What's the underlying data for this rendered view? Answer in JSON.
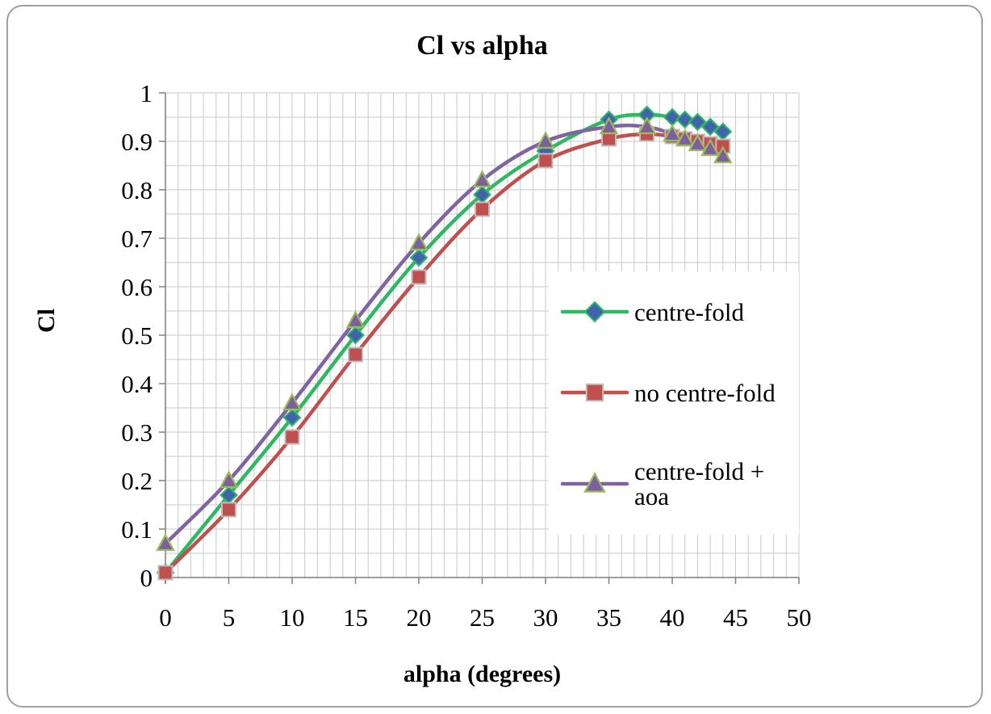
{
  "chart_data": {
    "type": "line",
    "title": "Cl vs alpha",
    "xlabel": "alpha (degrees)",
    "ylabel": "Cl",
    "xlim": [
      0,
      50
    ],
    "ylim": [
      0,
      1
    ],
    "x_major_step": 5,
    "y_major_step": 0.1,
    "x_minor_step": 1,
    "y_minor_step": 0.05,
    "grid": true,
    "legend_position": "overlay-middle-right",
    "x_ticks": [
      "0",
      "5",
      "10",
      "15",
      "20",
      "25",
      "30",
      "35",
      "40",
      "45",
      "50"
    ],
    "y_ticks": [
      "0",
      "0.1",
      "0.2",
      "0.3",
      "0.4",
      "0.5",
      "0.6",
      "0.7",
      "0.8",
      "0.9",
      "1"
    ],
    "colors": {
      "grid": "#c9c9c9",
      "axis": "#7f7f7f",
      "text": "#000000"
    },
    "series": [
      {
        "name": "centre-fold",
        "marker": "diamond",
        "line_color": "#2eb864",
        "marker_fill": "#4063ac",
        "marker_stroke": "#2eb864",
        "x": [
          0,
          5,
          10,
          15,
          20,
          25,
          30,
          35,
          38,
          40,
          41,
          42,
          43,
          44
        ],
        "y": [
          0.01,
          0.17,
          0.33,
          0.5,
          0.66,
          0.79,
          0.88,
          0.945,
          0.955,
          0.95,
          0.945,
          0.94,
          0.93,
          0.92
        ]
      },
      {
        "name": "no centre-fold",
        "marker": "square",
        "line_color": "#c0504d",
        "marker_fill": "#c0504d",
        "marker_stroke": "#bdbdbd",
        "x": [
          0,
          5,
          10,
          15,
          20,
          25,
          30,
          35,
          38,
          40,
          41,
          42,
          43,
          44
        ],
        "y": [
          0.01,
          0.14,
          0.29,
          0.46,
          0.62,
          0.76,
          0.86,
          0.905,
          0.915,
          0.91,
          0.905,
          0.9,
          0.895,
          0.89
        ]
      },
      {
        "name": "centre-fold + aoa",
        "marker": "triangle",
        "line_color": "#8064a2",
        "marker_fill": "#7d5fa0",
        "marker_stroke": "#9bbb59",
        "x": [
          0,
          5,
          10,
          15,
          20,
          25,
          30,
          35,
          38,
          40,
          41,
          42,
          43,
          44
        ],
        "y": [
          0.07,
          0.2,
          0.36,
          0.53,
          0.69,
          0.82,
          0.9,
          0.93,
          0.93,
          0.915,
          0.905,
          0.895,
          0.885,
          0.87
        ]
      }
    ]
  }
}
